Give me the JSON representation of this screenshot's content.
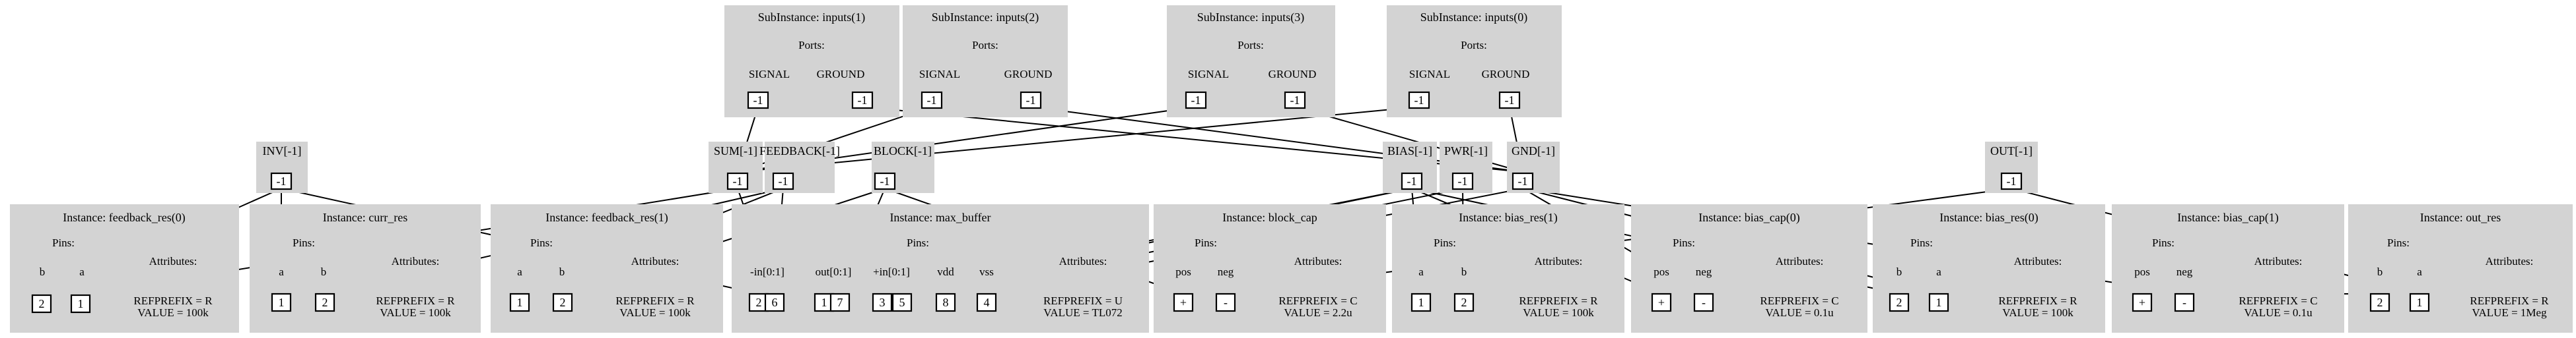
{
  "colors": {
    "box_fill": "#d3d3d3",
    "line": "#000000",
    "pin_fill": "#ffffff"
  },
  "subinstances": [
    {
      "id": "inputs1",
      "title": "SubInstance: inputs(1)",
      "ports_label": "Ports:",
      "ports": [
        {
          "name": "SIGNAL",
          "net": "-1"
        },
        {
          "name": "GROUND",
          "net": "-1"
        }
      ]
    },
    {
      "id": "inputs2",
      "title": "SubInstance: inputs(2)",
      "ports_label": "Ports:",
      "ports": [
        {
          "name": "SIGNAL",
          "net": "-1"
        },
        {
          "name": "GROUND",
          "net": "-1"
        }
      ]
    },
    {
      "id": "inputs3",
      "title": "SubInstance: inputs(3)",
      "ports_label": "Ports:",
      "ports": [
        {
          "name": "SIGNAL",
          "net": "-1"
        },
        {
          "name": "GROUND",
          "net": "-1"
        }
      ]
    },
    {
      "id": "inputs0",
      "title": "SubInstance: inputs(0)",
      "ports_label": "Ports:",
      "ports": [
        {
          "name": "SIGNAL",
          "net": "-1"
        },
        {
          "name": "GROUND",
          "net": "-1"
        }
      ]
    }
  ],
  "nets": [
    {
      "id": "inv",
      "label": "INV[-1]",
      "values": [
        "-1"
      ]
    },
    {
      "id": "sum",
      "label": "SUM[-1]",
      "values": [
        "-1"
      ]
    },
    {
      "id": "feedback",
      "label": "FEEDBACK[-1]",
      "values": [
        "-1"
      ]
    },
    {
      "id": "block",
      "label": "BLOCK[-1]",
      "values": [
        "-1"
      ]
    },
    {
      "id": "bias",
      "label": "BIAS[-1]",
      "values": [
        "-1"
      ]
    },
    {
      "id": "pwr",
      "label": "PWR[-1]",
      "values": [
        "-1"
      ]
    },
    {
      "id": "gnd",
      "label": "GND[-1]",
      "values": [
        "-1"
      ]
    },
    {
      "id": "out",
      "label": "OUT[-1]",
      "values": [
        "-1"
      ]
    }
  ],
  "instances": [
    {
      "id": "feedback_res0",
      "title": "Instance: feedback_res(0)",
      "pins_label": "Pins:",
      "attributes_label": "Attributes:",
      "pins": [
        {
          "name": "b",
          "num": "2"
        },
        {
          "name": "a",
          "num": "1"
        }
      ],
      "attributes": [
        "REFPREFIX = R",
        "VALUE = 100k"
      ]
    },
    {
      "id": "curr_res",
      "title": "Instance: curr_res",
      "pins_label": "Pins:",
      "attributes_label": "Attributes:",
      "pins": [
        {
          "name": "a",
          "num": "1"
        },
        {
          "name": "b",
          "num": "2"
        }
      ],
      "attributes": [
        "REFPREFIX = R",
        "VALUE = 100k"
      ]
    },
    {
      "id": "feedback_res1",
      "title": "Instance: feedback_res(1)",
      "pins_label": "Pins:",
      "attributes_label": "Attributes:",
      "pins": [
        {
          "name": "a",
          "num": "1"
        },
        {
          "name": "b",
          "num": "2"
        }
      ],
      "attributes": [
        "REFPREFIX = R",
        "VALUE = 100k"
      ]
    },
    {
      "id": "max_buffer",
      "title": "Instance: max_buffer",
      "pins_label": "Pins:",
      "attributes_label": "Attributes:",
      "pins": [
        {
          "name": "-in[0:1]",
          "num": "2"
        },
        {
          "name": "-in[0:1]",
          "num": "6"
        },
        {
          "name": "out[0:1]",
          "num": "1"
        },
        {
          "name": "out[0:1]",
          "num": "7"
        },
        {
          "name": "+in[0:1]",
          "num": "3"
        },
        {
          "name": "+in[0:1]",
          "num": "5"
        },
        {
          "name": "vdd",
          "num": "8"
        },
        {
          "name": "vss",
          "num": "4"
        }
      ],
      "attributes": [
        "REFPREFIX = U",
        "VALUE = TL072"
      ]
    },
    {
      "id": "block_cap",
      "title": "Instance: block_cap",
      "pins_label": "Pins:",
      "attributes_label": "Attributes:",
      "pins": [
        {
          "name": "pos",
          "num": "+"
        },
        {
          "name": "neg",
          "num": "-"
        }
      ],
      "attributes": [
        "REFPREFIX = C",
        "VALUE = 2.2u"
      ]
    },
    {
      "id": "bias_res1",
      "title": "Instance: bias_res(1)",
      "pins_label": "Pins:",
      "attributes_label": "Attributes:",
      "pins": [
        {
          "name": "a",
          "num": "1"
        },
        {
          "name": "b",
          "num": "2"
        }
      ],
      "attributes": [
        "REFPREFIX = R",
        "VALUE = 100k"
      ]
    },
    {
      "id": "bias_cap0",
      "title": "Instance: bias_cap(0)",
      "pins_label": "Pins:",
      "attributes_label": "Attributes:",
      "pins": [
        {
          "name": "pos",
          "num": "+"
        },
        {
          "name": "neg",
          "num": "-"
        }
      ],
      "attributes": [
        "REFPREFIX = C",
        "VALUE = 0.1u"
      ]
    },
    {
      "id": "bias_res0",
      "title": "Instance: bias_res(0)",
      "pins_label": "Pins:",
      "attributes_label": "Attributes:",
      "pins": [
        {
          "name": "b",
          "num": "2"
        },
        {
          "name": "a",
          "num": "1"
        }
      ],
      "attributes": [
        "REFPREFIX = R",
        "VALUE = 100k"
      ]
    },
    {
      "id": "bias_cap1",
      "title": "Instance: bias_cap(1)",
      "pins_label": "Pins:",
      "attributes_label": "Attributes:",
      "pins": [
        {
          "name": "pos",
          "num": "+"
        },
        {
          "name": "neg",
          "num": "-"
        }
      ],
      "attributes": [
        "REFPREFIX = C",
        "VALUE = 0.1u"
      ]
    },
    {
      "id": "out_res",
      "title": "Instance: out_res",
      "pins_label": "Pins:",
      "attributes_label": "Attributes:",
      "pins": [
        {
          "name": "b",
          "num": "2"
        },
        {
          "name": "a",
          "num": "1"
        }
      ],
      "attributes": [
        "REFPREFIX = R",
        "VALUE = 1Meg"
      ]
    }
  ]
}
